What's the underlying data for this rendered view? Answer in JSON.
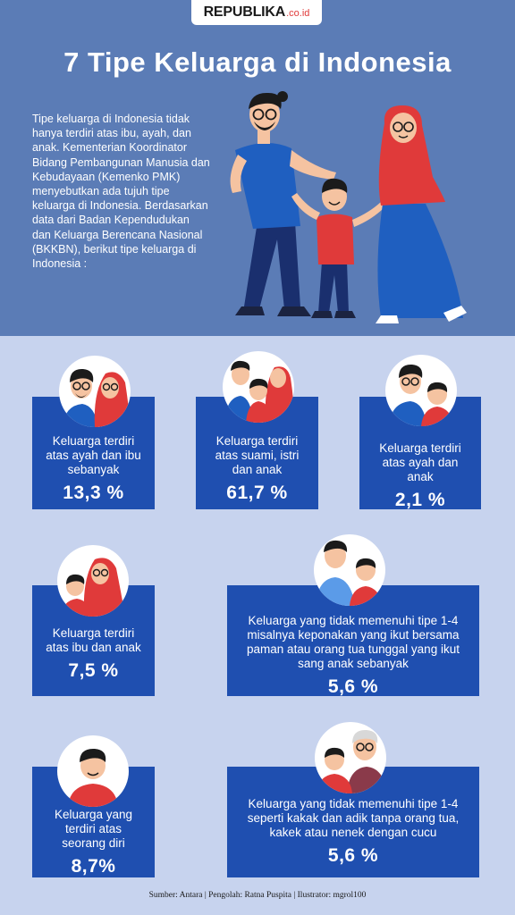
{
  "brand": {
    "name": "REPUBLIKA",
    "suffix": ".co.id"
  },
  "title": "7 Tipe Keluarga di Indonesia",
  "intro": "Tipe keluarga di Indonesia tidak hanya terdiri atas ibu, ayah, dan anak. Kementerian Koordinator Bidang Pembangunan Manusia dan Kebudayaan (Kemenko PMK) menyebutkan ada tujuh tipe keluarga di Indonesia. Berdasarkan data dari Badan Kependudukan dan Keluarga Berencana Nasional (BKKBN), berikut tipe keluarga di Indonesia :",
  "cards": [
    {
      "text": "Keluarga terdiri atas ayah dan ibu sebanyak",
      "value": "13,3 %",
      "icon": "father-mother-icon"
    },
    {
      "text": "Keluarga terdiri atas suami, istri dan anak",
      "value": "61,7 %",
      "icon": "family-icon"
    },
    {
      "text": "Keluarga terdiri atas ayah dan anak",
      "value": "2,1 %",
      "icon": "father-child-icon"
    },
    {
      "text": "Keluarga terdiri atas ibu dan anak",
      "value": "7,5 %",
      "icon": "mother-child-icon"
    },
    {
      "text": "Keluarga yang tidak memenuhi tipe 1-4 misalnya keponakan yang ikut bersama paman atau orang tua tunggal yang ikut sang anak sebanyak",
      "value": "5,6 %",
      "icon": "uncle-nephew-icon"
    },
    {
      "text": "Keluarga yang terdiri atas seorang diri",
      "value": "8,7%",
      "icon": "single-person-icon"
    },
    {
      "text": "Keluarga yang tidak memenuhi tipe 1-4 seperti kakak dan adik tanpa orang tua, kakek atau nenek dengan cucu",
      "value": "5,6 %",
      "icon": "grandparent-grandchild-icon"
    }
  ],
  "source": "Sumber: Antara | Pengolah: Ratna Puspita | Ilustrator: mgrol100",
  "colors": {
    "top_bg": "#5b7cb6",
    "bottom_bg": "#c7d3ee",
    "card_bg": "#1f4fb0",
    "shirt_blue": "#1f5fc0",
    "shirt_red": "#e03a3a"
  }
}
